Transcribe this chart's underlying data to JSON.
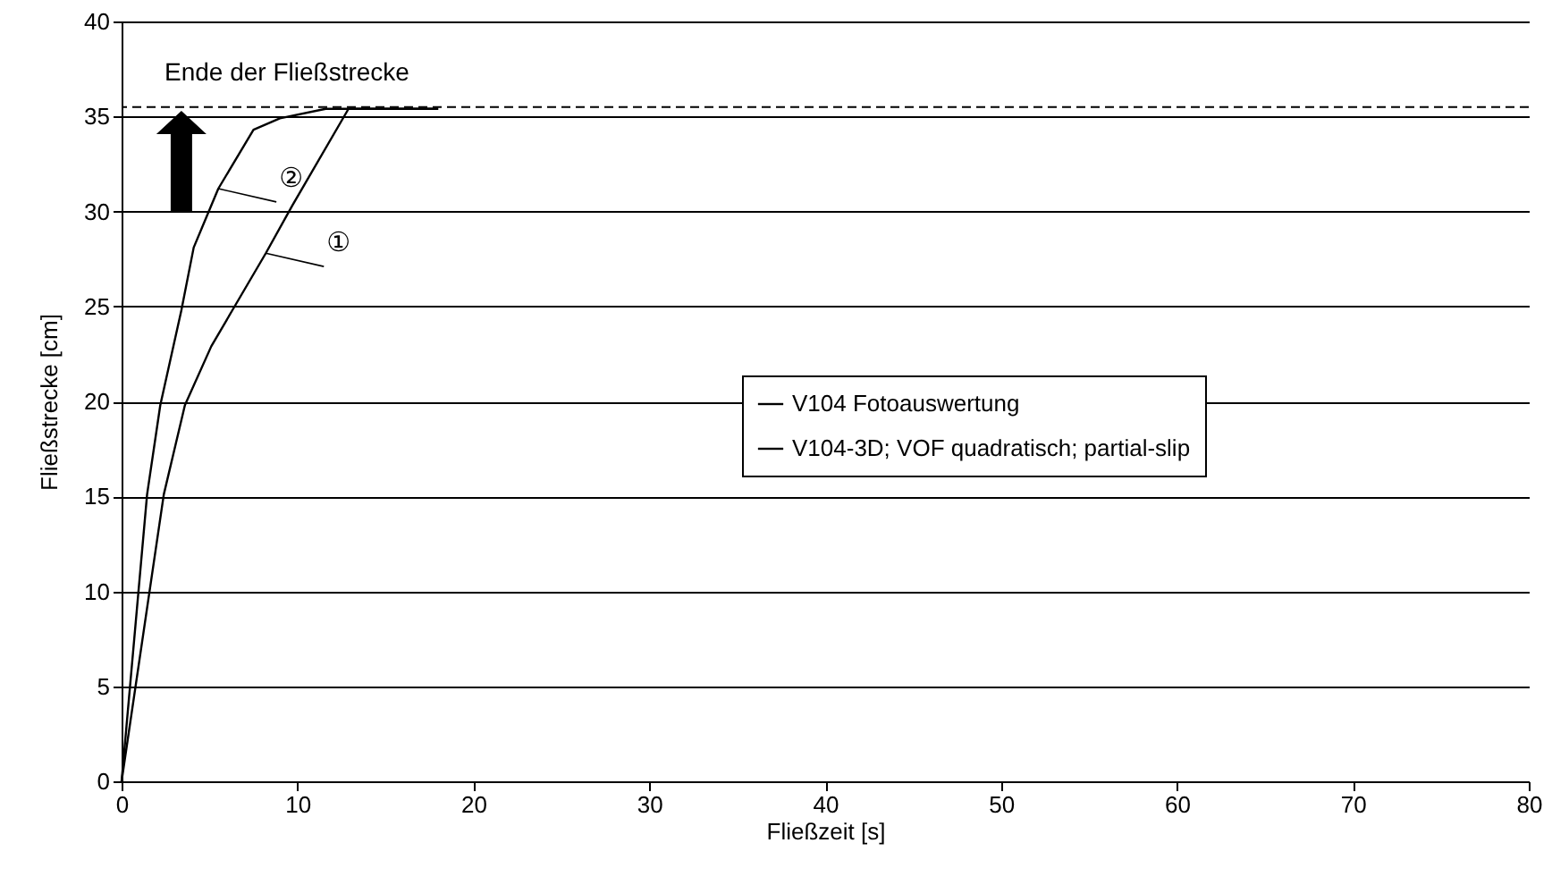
{
  "chart_data": {
    "type": "line",
    "xlabel": "Fließzeit [s]",
    "ylabel": "Fließstrecke [cm]",
    "xlim": [
      0,
      80
    ],
    "xticks": [
      0,
      10,
      20,
      30,
      40,
      50,
      60,
      70,
      80
    ],
    "ylim": [
      0,
      40
    ],
    "yticks": [
      0,
      5,
      10,
      15,
      20,
      25,
      30,
      35,
      40
    ],
    "grid": "y",
    "legend": "right",
    "line_style": "solid",
    "marker": "none",
    "series": [
      {
        "name": "V104 Fotoauswertung",
        "color": "#000000",
        "x": [
          0,
          2.4,
          3.6,
          5.1,
          6.3,
          8.2,
          9.7,
          12.9,
          18
        ],
        "values": [
          0,
          15.1,
          19.8,
          22.9,
          24.8,
          27.8,
          30.3,
          35.4,
          35.4
        ]
      },
      {
        "name": "V104-3D; VOF quadratisch; partial-slip",
        "color": "#000000",
        "x": [
          0,
          1.45,
          2.2,
          3.4,
          4.1,
          5.5,
          7.5,
          9,
          11.6,
          18
        ],
        "values": [
          0,
          15.1,
          19.8,
          24.8,
          28.1,
          31.2,
          34.3,
          34.9,
          35.4,
          35.4
        ]
      }
    ],
    "ref_lines": [
      {
        "axis": "y",
        "value": 35.5,
        "label": "Ende der Fließstrecke",
        "line_style": "dashed",
        "color": "#000000"
      }
    ],
    "annotations": [
      {
        "text": "①",
        "x": 8.2,
        "y": 27.8
      },
      {
        "text": "②",
        "x": 5.5,
        "y": 31.2
      }
    ]
  }
}
